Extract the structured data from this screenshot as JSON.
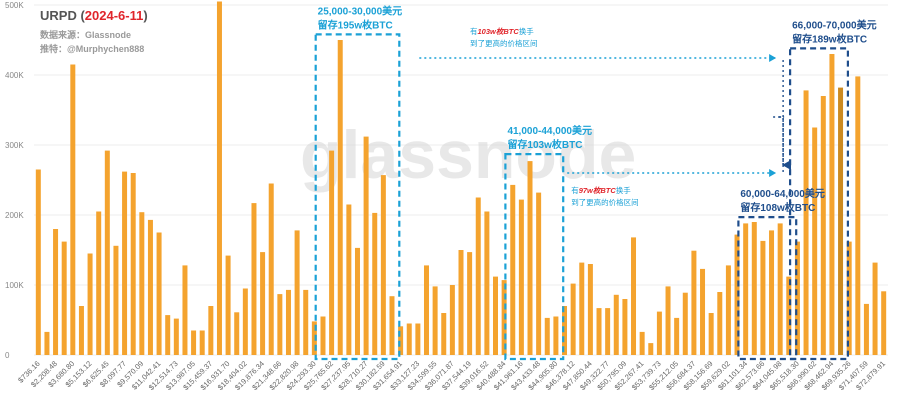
{
  "chart_data": {
    "type": "bar",
    "title_prefix": "URPD (",
    "title_date": "2024-6-11",
    "title_suffix": ")",
    "source_line": "数据来源：Glassnode",
    "twitter_line": "推特：@Murphychen888",
    "watermark": "glassnode",
    "ylim": [
      0,
      500000
    ],
    "yticks": [
      {
        "value": 0,
        "label": "0"
      },
      {
        "value": 100000,
        "label": "100K"
      },
      {
        "value": 200000,
        "label": "200K"
      },
      {
        "value": 300000,
        "label": "300K"
      },
      {
        "value": 400000,
        "label": "400K"
      },
      {
        "value": 500000,
        "label": "500K"
      }
    ],
    "xticks": [
      {
        "index": 0,
        "label": "$736.16"
      },
      {
        "index": 2,
        "label": "$2,208.48"
      },
      {
        "index": 4,
        "label": "$3,680.80"
      },
      {
        "index": 6,
        "label": "$5,153.12"
      },
      {
        "index": 8,
        "label": "$6,625.45"
      },
      {
        "index": 10,
        "label": "$8,097.77"
      },
      {
        "index": 12,
        "label": "$9,570.09"
      },
      {
        "index": 14,
        "label": "$11,042.41"
      },
      {
        "index": 16,
        "label": "$12,514.73"
      },
      {
        "index": 18,
        "label": "$13,987.05"
      },
      {
        "index": 20,
        "label": "$15,459.37"
      },
      {
        "index": 22,
        "label": "$16,931.70"
      },
      {
        "index": 24,
        "label": "$18,404.02"
      },
      {
        "index": 26,
        "label": "$19,876.34"
      },
      {
        "index": 28,
        "label": "$21,348.66"
      },
      {
        "index": 30,
        "label": "$22,820.98"
      },
      {
        "index": 32,
        "label": "$24,293.30"
      },
      {
        "index": 34,
        "label": "$25,765.62"
      },
      {
        "index": 36,
        "label": "$27,237.95"
      },
      {
        "index": 38,
        "label": "$28,710.27"
      },
      {
        "index": 40,
        "label": "$30,182.59"
      },
      {
        "index": 42,
        "label": "$31,654.91"
      },
      {
        "index": 44,
        "label": "$33,127.23"
      },
      {
        "index": 46,
        "label": "$34,599.55"
      },
      {
        "index": 48,
        "label": "$36,071.87"
      },
      {
        "index": 50,
        "label": "$37,544.19"
      },
      {
        "index": 52,
        "label": "$39,016.52"
      },
      {
        "index": 54,
        "label": "$40,488.84"
      },
      {
        "index": 56,
        "label": "$41,961.16"
      },
      {
        "index": 58,
        "label": "$43,433.48"
      },
      {
        "index": 60,
        "label": "$44,905.80"
      },
      {
        "index": 62,
        "label": "$46,378.12"
      },
      {
        "index": 64,
        "label": "$47,850.44"
      },
      {
        "index": 66,
        "label": "$49,322.77"
      },
      {
        "index": 68,
        "label": "$50,795.09"
      },
      {
        "index": 70,
        "label": "$52,267.41"
      },
      {
        "index": 72,
        "label": "$53,739.73"
      },
      {
        "index": 74,
        "label": "$55,212.05"
      },
      {
        "index": 76,
        "label": "$56,684.37"
      },
      {
        "index": 78,
        "label": "$58,156.69"
      },
      {
        "index": 80,
        "label": "$59,629.02"
      },
      {
        "index": 82,
        "label": "$61,101.34"
      },
      {
        "index": 84,
        "label": "$62,573.66"
      },
      {
        "index": 86,
        "label": "$64,045.98"
      },
      {
        "index": 88,
        "label": "$65,518.30"
      },
      {
        "index": 90,
        "label": "$66,990.62"
      },
      {
        "index": 92,
        "label": "$68,462.94"
      },
      {
        "index": 94,
        "label": "$69,935.26"
      },
      {
        "index": 96,
        "label": "$71,407.59"
      },
      {
        "index": 98,
        "label": "$72,879.91"
      }
    ],
    "values": [
      265000,
      33000,
      180000,
      162000,
      415000,
      70000,
      145000,
      205000,
      292000,
      156000,
      262000,
      260000,
      204000,
      193000,
      175000,
      57000,
      52000,
      128000,
      35000,
      35000,
      70000,
      505000,
      142000,
      61000,
      95000,
      217000,
      147000,
      245000,
      87000,
      93000,
      178000,
      93000,
      48000,
      55000,
      292000,
      450000,
      215000,
      153000,
      312000,
      203000,
      257000,
      84000,
      41000,
      45000,
      45000,
      128000,
      98000,
      60000,
      100000,
      150000,
      147000,
      225000,
      205000,
      112000,
      107000,
      243000,
      222000,
      277000,
      232000,
      53000,
      55000,
      70000,
      102000,
      132000,
      130000,
      67000,
      67000,
      86000,
      80000,
      168000,
      33000,
      17000,
      62000,
      98000,
      53000,
      89000,
      149000,
      123000,
      60000,
      90000,
      128000,
      172000,
      188000,
      190000,
      163000,
      178000,
      188000,
      112000,
      162000,
      378000,
      325000,
      370000,
      430000,
      382000,
      162000,
      398000,
      73000,
      132000,
      91000
    ],
    "highlight_index": 93,
    "bar_color": "#f4a32e",
    "highlight_color": "#cc8a20",
    "cyan_color": "#1ba1d6",
    "navy_color": "#1f4e8c",
    "red_color": "#e0252b",
    "zones": [
      {
        "name": "zone-25k-30k",
        "color_key": "cyan",
        "start": 33,
        "end": 41,
        "ytop": 458000,
        "line1": "25,000-30,000美元",
        "line2": "留存195w枚BTC"
      },
      {
        "name": "zone-41k-44k",
        "color_key": "cyan",
        "start": 55,
        "end": 60,
        "ytop": 287000,
        "line1": "41,000-44,000美元",
        "line2": "留存103w枚BTC"
      },
      {
        "name": "zone-60k-64k",
        "color_key": "navy",
        "start": 82,
        "end": 87,
        "ytop": 197000,
        "line1": "60,000-64,000美元",
        "line2": "留存108w枚BTC"
      },
      {
        "name": "zone-66k-70k",
        "color_key": "navy",
        "start": 88,
        "end": 93,
        "ytop": 438000,
        "line1": "66,000-70,000美元",
        "line2": "留存189w枚BTC"
      }
    ],
    "flow_upper": {
      "prefix": "有",
      "amount": "103w枚BTC",
      "suffix": "换手",
      "line2": "到了更高的价格区间"
    },
    "flow_lower": {
      "prefix": "有",
      "amount": "97w枚BTC",
      "suffix": "换手",
      "line2": "到了更高的价格区间"
    }
  }
}
